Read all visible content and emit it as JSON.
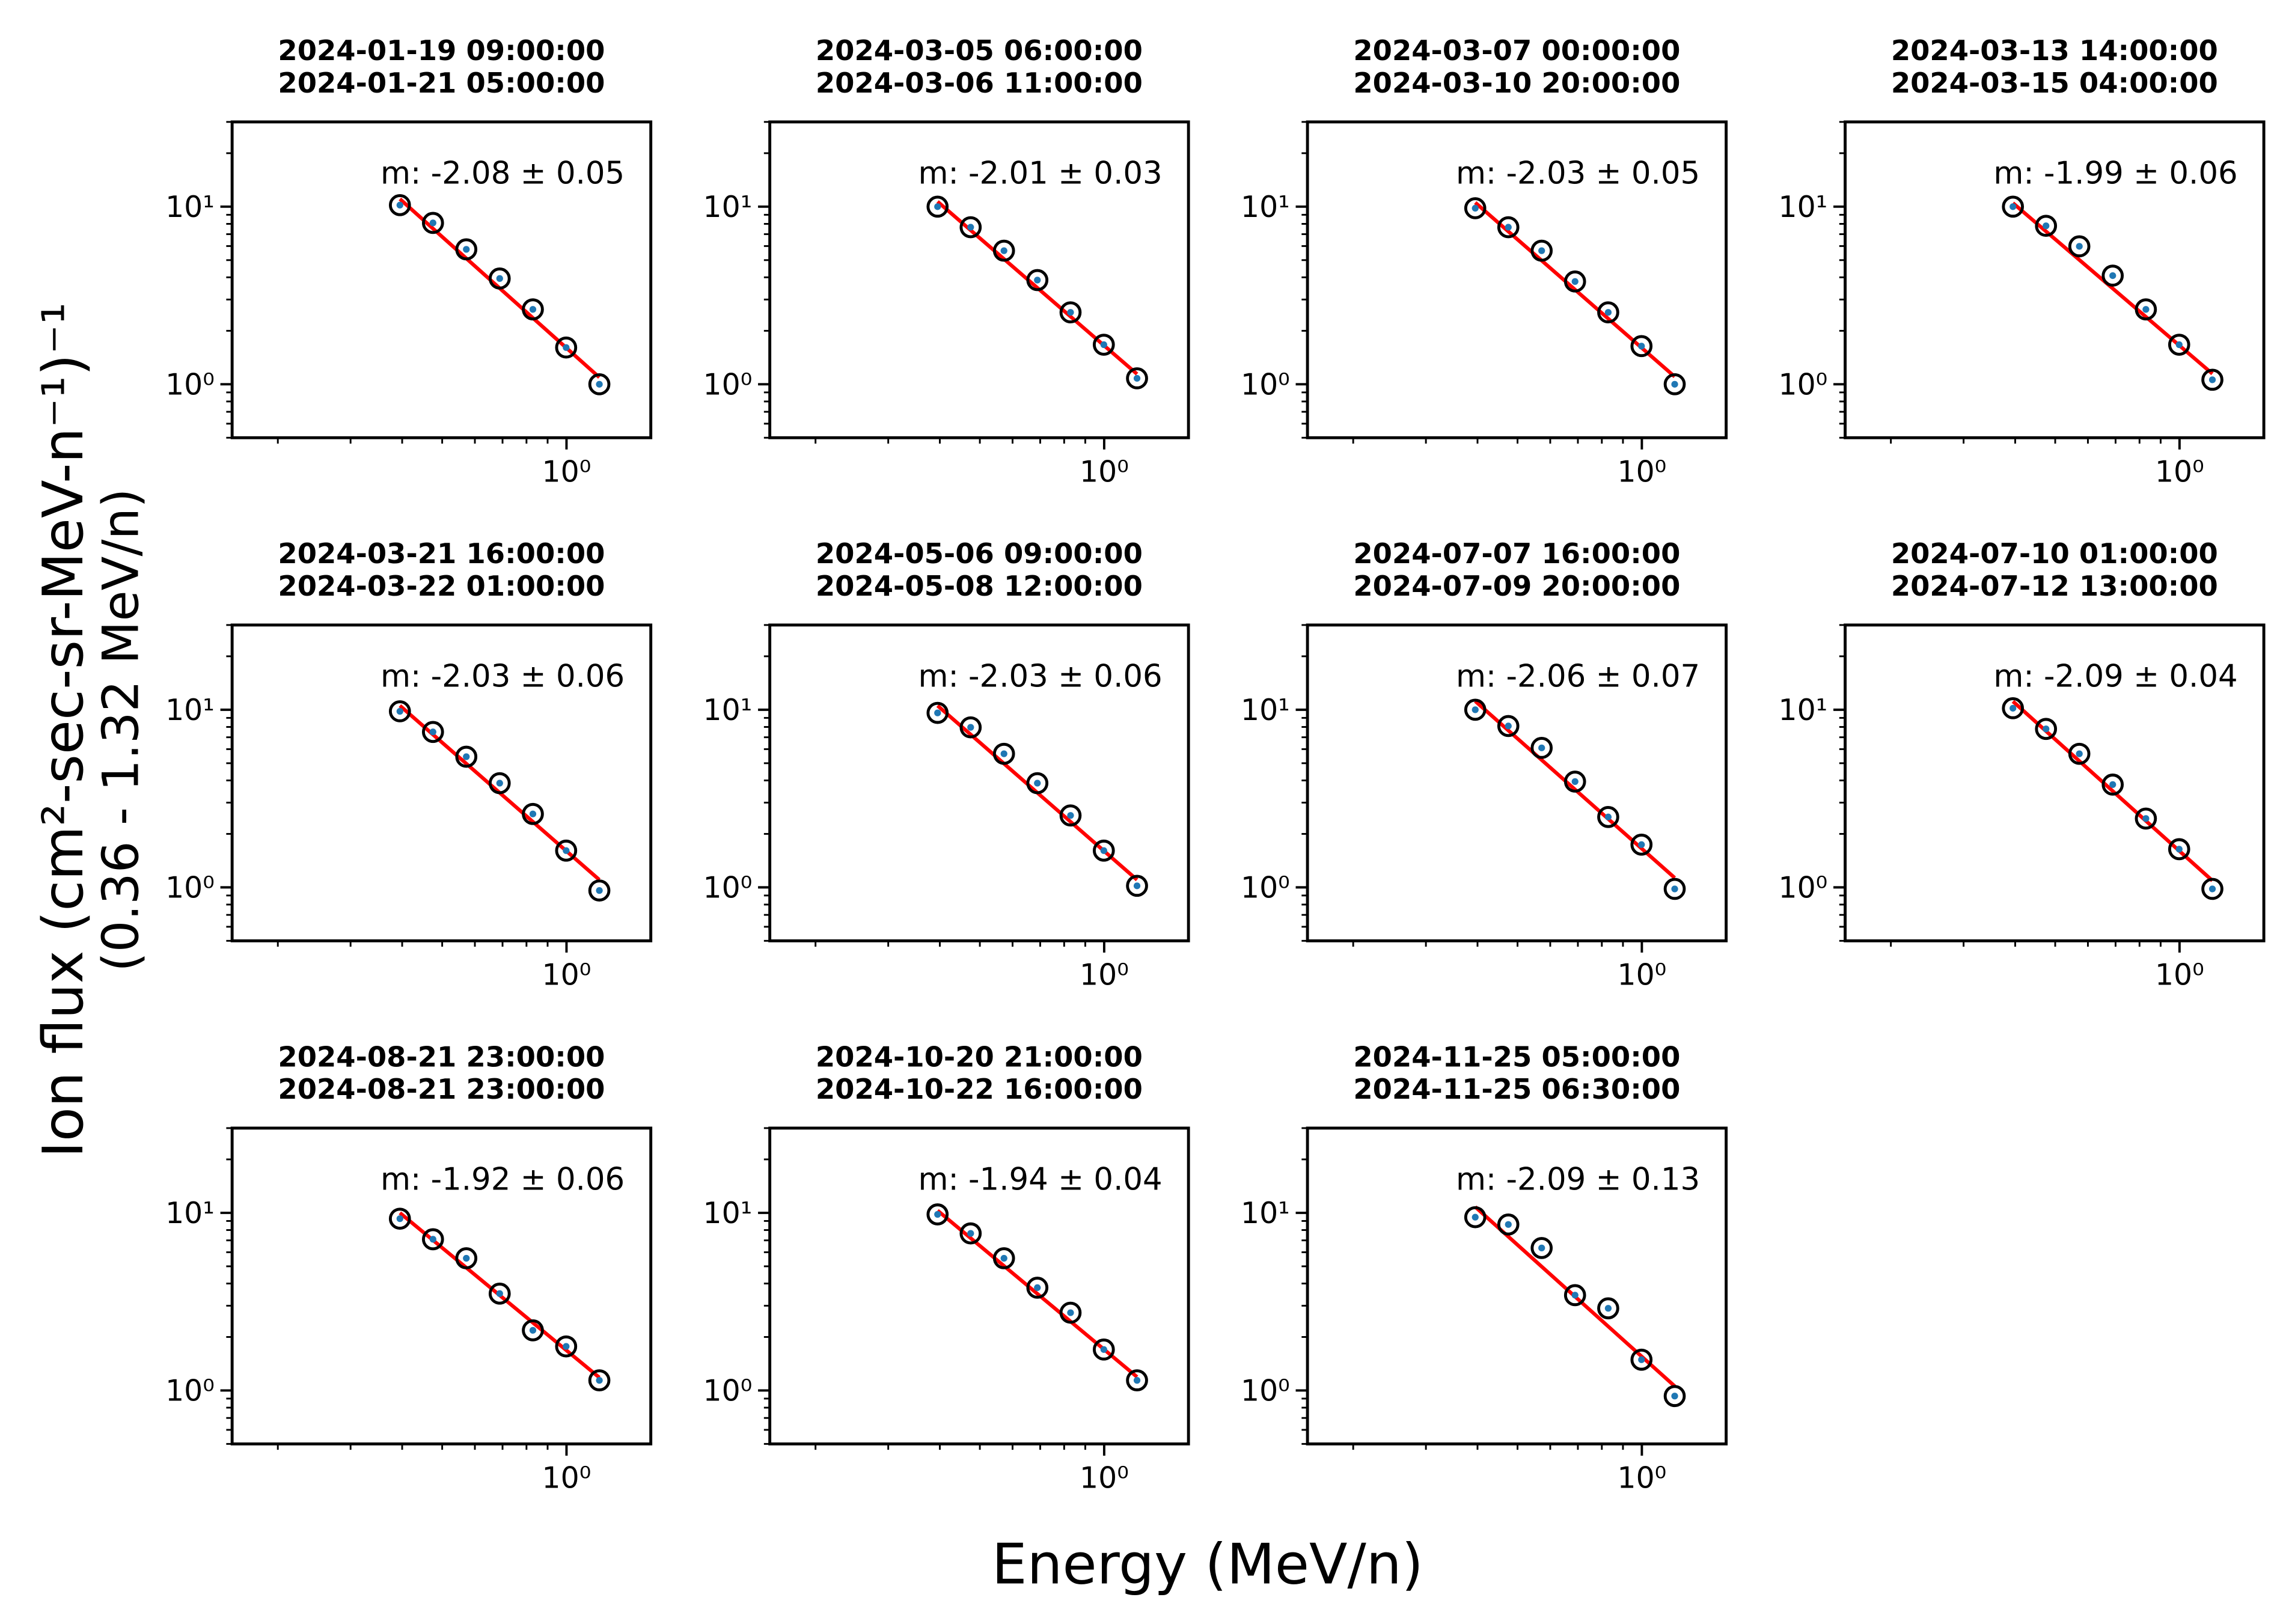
{
  "figure": {
    "xlabel": "Energy (MeV/n)",
    "ylabel": [
      "Ion flux (cm²-sec-sr-MeV-n⁻¹)⁻¹",
      "(0.36 - 1.32 MeV/n)"
    ]
  },
  "chart_data": [
    {
      "type": "scatter",
      "title": [
        "2024-01-19 09:00:00",
        "2024-01-21 05:00:00"
      ],
      "annotation": "m: -2.08 ± 0.05",
      "x": [
        0.395,
        0.475,
        0.572,
        0.689,
        0.829,
        0.998,
        1.201
      ],
      "values": [
        10.2,
        8.1,
        5.75,
        3.94,
        2.64,
        1.61,
        1.0
      ],
      "fit": {
        "slope": -2.08,
        "amplitude": 1.6,
        "color": "#ff0000"
      },
      "marker_color": "#000000",
      "error_color": "#1f77b4",
      "log_x": true,
      "log_y": true,
      "xlim": [
        0.155,
        1.6
      ],
      "ylim": [
        0.5,
        30
      ],
      "xticks": [
        {
          "value": 1,
          "label": "10⁰"
        }
      ],
      "yticks": [
        {
          "value": 1,
          "label": "10⁰"
        },
        {
          "value": 10,
          "label": "10¹"
        }
      ]
    },
    {
      "type": "scatter",
      "title": [
        "2024-03-05 06:00:00",
        "2024-03-06 11:00:00"
      ],
      "annotation": "m: -2.01 ± 0.03",
      "x": [
        0.395,
        0.475,
        0.572,
        0.689,
        0.829,
        0.998,
        1.201
      ],
      "values": [
        10.0,
        7.66,
        5.65,
        3.86,
        2.54,
        1.67,
        1.08
      ],
      "fit": {
        "slope": -2.01,
        "amplitude": 1.65,
        "color": "#ff0000"
      },
      "marker_color": "#000000",
      "error_color": "#1f77b4",
      "log_x": true,
      "log_y": true,
      "xlim": [
        0.155,
        1.6
      ],
      "ylim": [
        0.5,
        30
      ],
      "xticks": [
        {
          "value": 1,
          "label": "10⁰"
        }
      ],
      "yticks": [
        {
          "value": 1,
          "label": "10⁰"
        },
        {
          "value": 10,
          "label": "10¹"
        }
      ]
    },
    {
      "type": "scatter",
      "title": [
        "2024-03-07 00:00:00",
        "2024-03-10 20:00:00"
      ],
      "annotation": "m: -2.03 ± 0.05",
      "x": [
        0.395,
        0.475,
        0.572,
        0.689,
        0.829,
        0.998,
        1.201
      ],
      "values": [
        9.8,
        7.66,
        5.65,
        3.79,
        2.54,
        1.64,
        1.0
      ],
      "fit": {
        "slope": -2.03,
        "amplitude": 1.6,
        "color": "#ff0000"
      },
      "marker_color": "#000000",
      "error_color": "#1f77b4",
      "log_x": true,
      "log_y": true,
      "xlim": [
        0.155,
        1.6
      ],
      "ylim": [
        0.5,
        30
      ],
      "xticks": [
        {
          "value": 1,
          "label": "10⁰"
        }
      ],
      "yticks": [
        {
          "value": 1,
          "label": "10⁰"
        },
        {
          "value": 10,
          "label": "10¹"
        }
      ]
    },
    {
      "type": "scatter",
      "title": [
        "2024-03-13 14:00:00",
        "2024-03-15 04:00:00"
      ],
      "annotation": "m: -1.99 ± 0.06",
      "x": [
        0.395,
        0.475,
        0.572,
        0.689,
        0.829,
        0.998,
        1.201
      ],
      "values": [
        10.0,
        7.8,
        5.98,
        4.09,
        2.64,
        1.67,
        1.06
      ],
      "fit": {
        "slope": -1.99,
        "amplitude": 1.65,
        "color": "#ff0000"
      },
      "marker_color": "#000000",
      "error_color": "#1f77b4",
      "log_x": true,
      "log_y": true,
      "xlim": [
        0.155,
        1.6
      ],
      "ylim": [
        0.5,
        30
      ],
      "xticks": [
        {
          "value": 1,
          "label": "10⁰"
        }
      ],
      "yticks": [
        {
          "value": 1,
          "label": "10⁰"
        },
        {
          "value": 10,
          "label": "10¹"
        }
      ]
    },
    {
      "type": "scatter",
      "title": [
        "2024-03-21 16:00:00",
        "2024-03-22 01:00:00"
      ],
      "annotation": "m: -2.03 ± 0.06",
      "x": [
        0.395,
        0.475,
        0.572,
        0.689,
        0.829,
        0.998,
        1.201
      ],
      "values": [
        9.8,
        7.5,
        5.44,
        3.86,
        2.59,
        1.61,
        0.96
      ],
      "fit": {
        "slope": -2.03,
        "amplitude": 1.6,
        "color": "#ff0000"
      },
      "marker_color": "#000000",
      "error_color": "#1f77b4",
      "log_x": true,
      "log_y": true,
      "xlim": [
        0.155,
        1.6
      ],
      "ylim": [
        0.5,
        30
      ],
      "xticks": [
        {
          "value": 1,
          "label": "10⁰"
        }
      ],
      "yticks": [
        {
          "value": 1,
          "label": "10⁰"
        },
        {
          "value": 10,
          "label": "10¹"
        }
      ]
    },
    {
      "type": "scatter",
      "title": [
        "2024-05-06 09:00:00",
        "2024-05-08 12:00:00"
      ],
      "annotation": "m: -2.03 ± 0.06",
      "x": [
        0.395,
        0.475,
        0.572,
        0.689,
        0.829,
        0.998,
        1.201
      ],
      "values": [
        9.6,
        7.96,
        5.65,
        3.86,
        2.54,
        1.61,
        1.02
      ],
      "fit": {
        "slope": -2.03,
        "amplitude": 1.6,
        "color": "#ff0000"
      },
      "marker_color": "#000000",
      "error_color": "#1f77b4",
      "log_x": true,
      "log_y": true,
      "xlim": [
        0.155,
        1.6
      ],
      "ylim": [
        0.5,
        30
      ],
      "xticks": [
        {
          "value": 1,
          "label": "10⁰"
        }
      ],
      "yticks": [
        {
          "value": 1,
          "label": "10⁰"
        },
        {
          "value": 10,
          "label": "10¹"
        }
      ]
    },
    {
      "type": "scatter",
      "title": [
        "2024-07-07 16:00:00",
        "2024-07-09 20:00:00"
      ],
      "annotation": "m: -2.06 ± 0.07",
      "x": [
        0.395,
        0.475,
        0.572,
        0.689,
        0.829,
        0.998,
        1.201
      ],
      "values": [
        10.0,
        8.1,
        6.1,
        3.94,
        2.49,
        1.74,
        0.98
      ],
      "fit": {
        "slope": -2.06,
        "amplitude": 1.65,
        "color": "#ff0000"
      },
      "marker_color": "#000000",
      "error_color": "#1f77b4",
      "log_x": true,
      "log_y": true,
      "xlim": [
        0.155,
        1.6
      ],
      "ylim": [
        0.5,
        30
      ],
      "xticks": [
        {
          "value": 1,
          "label": "10⁰"
        }
      ],
      "yticks": [
        {
          "value": 1,
          "label": "10⁰"
        },
        {
          "value": 10,
          "label": "10¹"
        }
      ]
    },
    {
      "type": "scatter",
      "title": [
        "2024-07-10 01:00:00",
        "2024-07-12 13:00:00"
      ],
      "annotation": "m: -2.09 ± 0.04",
      "x": [
        0.395,
        0.475,
        0.572,
        0.689,
        0.829,
        0.998,
        1.201
      ],
      "values": [
        10.2,
        7.8,
        5.65,
        3.79,
        2.44,
        1.64,
        0.98
      ],
      "fit": {
        "slope": -2.09,
        "amplitude": 1.6,
        "color": "#ff0000"
      },
      "marker_color": "#000000",
      "error_color": "#1f77b4",
      "log_x": true,
      "log_y": true,
      "xlim": [
        0.155,
        1.6
      ],
      "ylim": [
        0.5,
        30
      ],
      "xticks": [
        {
          "value": 1,
          "label": "10⁰"
        }
      ],
      "yticks": [
        {
          "value": 1,
          "label": "10⁰"
        },
        {
          "value": 10,
          "label": "10¹"
        }
      ]
    },
    {
      "type": "scatter",
      "title": [
        "2024-08-21 23:00:00",
        "2024-08-21 23:00:00"
      ],
      "annotation": "m: -1.92 ± 0.06",
      "x": [
        0.395,
        0.475,
        0.572,
        0.689,
        0.829,
        0.998,
        1.201
      ],
      "values": [
        9.27,
        7.1,
        5.55,
        3.51,
        2.18,
        1.77,
        1.14
      ],
      "fit": {
        "slope": -1.92,
        "amplitude": 1.68,
        "color": "#ff0000"
      },
      "marker_color": "#000000",
      "error_color": "#1f77b4",
      "log_x": true,
      "log_y": true,
      "xlim": [
        0.155,
        1.6
      ],
      "ylim": [
        0.5,
        30
      ],
      "xticks": [
        {
          "value": 1,
          "label": "10⁰"
        }
      ],
      "yticks": [
        {
          "value": 1,
          "label": "10⁰"
        },
        {
          "value": 10,
          "label": "10¹"
        }
      ]
    },
    {
      "type": "scatter",
      "title": [
        "2024-10-20 21:00:00",
        "2024-10-22 16:00:00"
      ],
      "annotation": "m: -1.94 ± 0.04",
      "x": [
        0.395,
        0.475,
        0.572,
        0.689,
        0.829,
        0.998,
        1.201
      ],
      "values": [
        9.8,
        7.66,
        5.55,
        3.79,
        2.74,
        1.7,
        1.14
      ],
      "fit": {
        "slope": -1.94,
        "amplitude": 1.7,
        "color": "#ff0000"
      },
      "marker_color": "#000000",
      "error_color": "#1f77b4",
      "log_x": true,
      "log_y": true,
      "xlim": [
        0.155,
        1.6
      ],
      "ylim": [
        0.5,
        30
      ],
      "xticks": [
        {
          "value": 1,
          "label": "10⁰"
        }
      ],
      "yticks": [
        {
          "value": 1,
          "label": "10⁰"
        },
        {
          "value": 10,
          "label": "10¹"
        }
      ]
    },
    {
      "type": "scatter",
      "title": [
        "2024-11-25 05:00:00",
        "2024-11-25 06:30:00"
      ],
      "annotation": "m: -2.09 ± 0.13",
      "x": [
        0.395,
        0.475,
        0.572,
        0.689,
        0.829,
        0.998,
        1.201
      ],
      "values": [
        9.45,
        8.6,
        6.34,
        3.44,
        2.9,
        1.49,
        0.93
      ],
      "fit": {
        "slope": -2.09,
        "amplitude": 1.55,
        "color": "#ff0000"
      },
      "marker_color": "#000000",
      "error_color": "#1f77b4",
      "log_x": true,
      "log_y": true,
      "xlim": [
        0.155,
        1.6
      ],
      "ylim": [
        0.5,
        30
      ],
      "xticks": [
        {
          "value": 1,
          "label": "10⁰"
        }
      ],
      "yticks": [
        {
          "value": 1,
          "label": "10⁰"
        },
        {
          "value": 10,
          "label": "10¹"
        }
      ]
    }
  ]
}
